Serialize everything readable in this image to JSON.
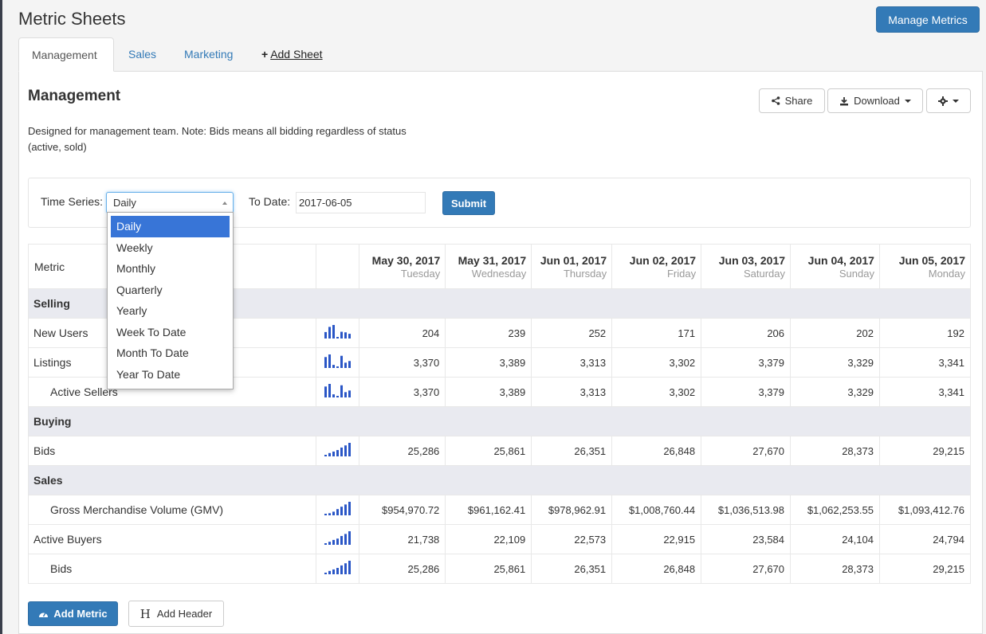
{
  "header": {
    "title": "Metric Sheets",
    "manage_label": "Manage Metrics"
  },
  "tabs": [
    {
      "label": "Management"
    },
    {
      "label": "Sales"
    },
    {
      "label": "Marketing"
    },
    {
      "label": "Add Sheet"
    }
  ],
  "sheet": {
    "title": "Management",
    "description": "Designed for management team. Note: Bids means all bidding regardless of status (active, sold)",
    "share_label": "Share",
    "download_label": "Download"
  },
  "filters": {
    "time_series_label": "Time Series:",
    "time_series_value": "Daily",
    "to_date_label": "To Date:",
    "to_date_value": "2017-06-05",
    "submit_label": "Submit",
    "options": [
      "Daily",
      "Weekly",
      "Monthly",
      "Quarterly",
      "Yearly",
      "Week To Date",
      "Month To Date",
      "Year To Date"
    ]
  },
  "table": {
    "metric_header": "Metric",
    "dates": [
      {
        "date": "May 30, 2017",
        "day": "Tuesday"
      },
      {
        "date": "May 31, 2017",
        "day": "Wednesday"
      },
      {
        "date": "Jun 01, 2017",
        "day": "Thursday"
      },
      {
        "date": "Jun 02, 2017",
        "day": "Friday"
      },
      {
        "date": "Jun 03, 2017",
        "day": "Saturday"
      },
      {
        "date": "Jun 04, 2017",
        "day": "Sunday"
      },
      {
        "date": "Jun 05, 2017",
        "day": "Monday"
      }
    ],
    "rows": [
      {
        "type": "section",
        "label": "Selling"
      },
      {
        "type": "metric",
        "label": "New Users",
        "indent": false,
        "values": [
          "204",
          "239",
          "252",
          "171",
          "206",
          "202",
          "192"
        ]
      },
      {
        "type": "metric",
        "label": "Listings",
        "indent": false,
        "values": [
          "3,370",
          "3,389",
          "3,313",
          "3,302",
          "3,379",
          "3,329",
          "3,341"
        ]
      },
      {
        "type": "metric",
        "label": "Active Sellers",
        "indent": true,
        "values": [
          "3,370",
          "3,389",
          "3,313",
          "3,302",
          "3,379",
          "3,329",
          "3,341"
        ]
      },
      {
        "type": "section",
        "label": "Buying"
      },
      {
        "type": "metric",
        "label": "Bids",
        "indent": false,
        "values": [
          "25,286",
          "25,861",
          "26,351",
          "26,848",
          "27,670",
          "28,373",
          "29,215"
        ]
      },
      {
        "type": "section",
        "label": "Sales"
      },
      {
        "type": "metric",
        "label": "Gross Merchandise Volume (GMV)",
        "indent": true,
        "values": [
          "$954,970.72",
          "$961,162.41",
          "$978,962.91",
          "$1,008,760.44",
          "$1,036,513.98",
          "$1,062,253.55",
          "$1,093,412.76"
        ]
      },
      {
        "type": "metric",
        "label": "Active Buyers",
        "indent": false,
        "values": [
          "21,738",
          "22,109",
          "22,573",
          "22,915",
          "23,584",
          "24,104",
          "24,794"
        ]
      },
      {
        "type": "metric",
        "label": "Bids",
        "indent": true,
        "values": [
          "25,286",
          "25,861",
          "26,351",
          "26,848",
          "27,670",
          "28,373",
          "29,215"
        ]
      }
    ]
  },
  "footer": {
    "add_metric_label": "Add Metric",
    "add_header_label": "Add Header"
  },
  "colors": {
    "primary": "#337ab7",
    "sparkline": "#2a56c6",
    "section_bg": "#e9eaf0",
    "dropdown_selected": "#3875d7"
  }
}
